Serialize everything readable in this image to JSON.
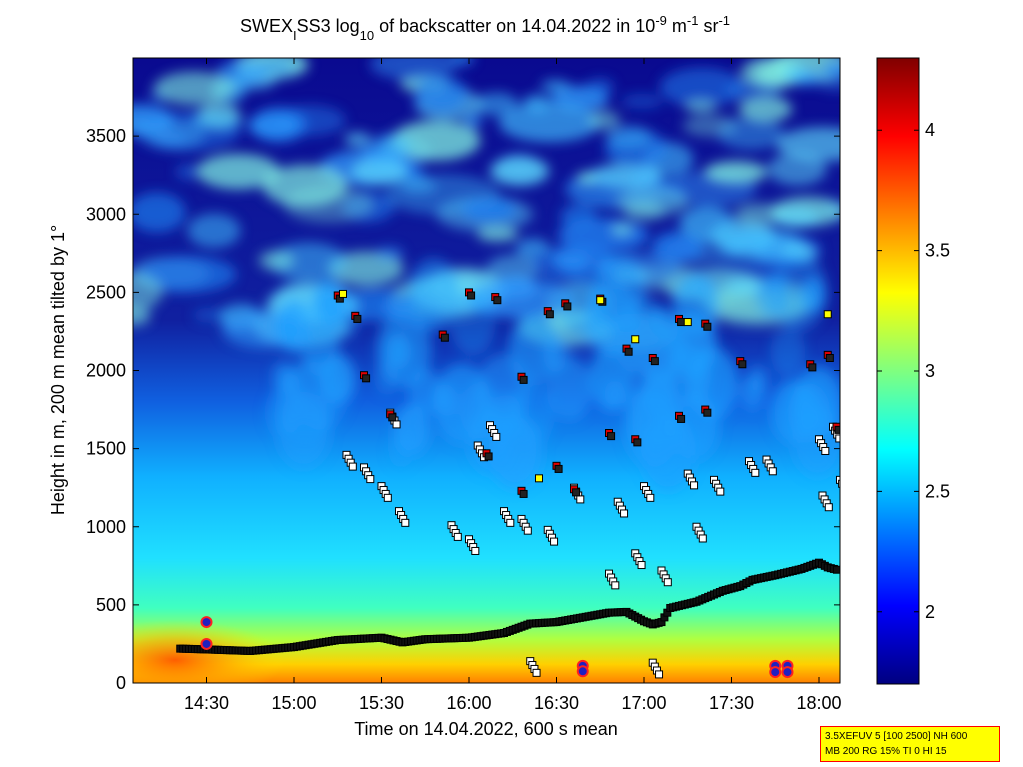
{
  "chart_data": {
    "type": "heatmap",
    "title_parts": {
      "prefix": "SWEX",
      "sub1": "I",
      "mid": "SS3 log",
      "sub2": "10",
      "mid2": " of backscatter on 14.04.2022 in 10",
      "sup1": "-9",
      "mid3": " m",
      "sup2": "-1",
      "mid4": " sr",
      "sup3": "-1"
    },
    "xlabel": "Time on 14.04.2022, 600 s mean",
    "ylabel": "Height in m, 200 m mean tilted by 1°",
    "x_range_hours": [
      14.08,
      18.12
    ],
    "xlim": [
      "14:05",
      "18:07"
    ],
    "ylim": [
      0,
      4000
    ],
    "x_ticks": [
      {
        "value": 14.5,
        "label": "14:30"
      },
      {
        "value": 15.0,
        "label": "15:00"
      },
      {
        "value": 15.5,
        "label": "15:30"
      },
      {
        "value": 16.0,
        "label": "16:00"
      },
      {
        "value": 16.5,
        "label": "16:30"
      },
      {
        "value": 17.0,
        "label": "17:00"
      },
      {
        "value": 17.5,
        "label": "17:30"
      },
      {
        "value": 18.0,
        "label": "18:00"
      }
    ],
    "y_ticks": [
      {
        "value": 0,
        "label": "0"
      },
      {
        "value": 500,
        "label": "500"
      },
      {
        "value": 1000,
        "label": "1000"
      },
      {
        "value": 1500,
        "label": "1500"
      },
      {
        "value": 2000,
        "label": "2000"
      },
      {
        "value": 2500,
        "label": "2500"
      },
      {
        "value": 3000,
        "label": "3000"
      },
      {
        "value": 3500,
        "label": "3500"
      }
    ],
    "colorbar": {
      "range": [
        1.7,
        4.3
      ],
      "ticks": [
        {
          "value": 2,
          "label": "2"
        },
        {
          "value": 2.5,
          "label": "2.5"
        },
        {
          "value": 3,
          "label": "3"
        },
        {
          "value": 3.5,
          "label": "3.5"
        },
        {
          "value": 4,
          "label": "4"
        }
      ],
      "colormap": "jet"
    },
    "mixing_layer_height": [
      [
        14.35,
        220
      ],
      [
        14.5,
        215
      ],
      [
        14.75,
        205
      ],
      [
        15.0,
        230
      ],
      [
        15.25,
        275
      ],
      [
        15.5,
        290
      ],
      [
        15.62,
        260
      ],
      [
        15.75,
        280
      ],
      [
        16.0,
        290
      ],
      [
        16.2,
        320
      ],
      [
        16.35,
        380
      ],
      [
        16.5,
        390
      ],
      [
        16.65,
        420
      ],
      [
        16.8,
        450
      ],
      [
        16.9,
        455
      ],
      [
        17.0,
        395
      ],
      [
        17.05,
        375
      ],
      [
        17.1,
        390
      ],
      [
        17.15,
        480
      ],
      [
        17.3,
        520
      ],
      [
        17.45,
        590
      ],
      [
        17.55,
        620
      ],
      [
        17.62,
        660
      ],
      [
        17.75,
        690
      ],
      [
        17.9,
        730
      ],
      [
        18.0,
        770
      ],
      [
        18.05,
        740
      ],
      [
        18.12,
        720
      ]
    ],
    "layer_markers_white": [
      [
        15.3,
        1460
      ],
      [
        15.4,
        1380
      ],
      [
        15.5,
        1260
      ],
      [
        15.6,
        1100
      ],
      [
        15.9,
        1010
      ],
      [
        16.0,
        920
      ],
      [
        15.55,
        1730
      ],
      [
        16.05,
        1520
      ],
      [
        16.12,
        1650
      ],
      [
        16.2,
        1100
      ],
      [
        16.3,
        1050
      ],
      [
        16.45,
        980
      ],
      [
        16.6,
        1250
      ],
      [
        16.85,
        1160
      ],
      [
        17.0,
        1260
      ],
      [
        17.25,
        1340
      ],
      [
        17.4,
        1300
      ],
      [
        17.6,
        1420
      ],
      [
        17.7,
        1430
      ],
      [
        18.0,
        1560
      ],
      [
        18.08,
        1640
      ],
      [
        18.12,
        1300
      ],
      [
        18.02,
        1200
      ],
      [
        17.3,
        1000
      ],
      [
        17.1,
        720
      ],
      [
        16.95,
        830
      ],
      [
        16.8,
        700
      ],
      [
        16.35,
        140
      ],
      [
        17.05,
        130
      ]
    ],
    "layer_markers_red": [
      [
        15.25,
        2480
      ],
      [
        15.35,
        2350
      ],
      [
        15.4,
        1970
      ],
      [
        15.55,
        1720
      ],
      [
        15.85,
        2230
      ],
      [
        16.0,
        2500
      ],
      [
        16.15,
        2470
      ],
      [
        16.3,
        1960
      ],
      [
        16.45,
        2380
      ],
      [
        16.55,
        2430
      ],
      [
        16.75,
        2460
      ],
      [
        16.9,
        2140
      ],
      [
        17.05,
        2080
      ],
      [
        17.2,
        2330
      ],
      [
        17.35,
        2300
      ],
      [
        17.55,
        2060
      ],
      [
        17.95,
        2040
      ],
      [
        18.05,
        2100
      ],
      [
        16.5,
        1390
      ],
      [
        16.6,
        1240
      ],
      [
        17.2,
        1710
      ],
      [
        17.35,
        1750
      ],
      [
        16.95,
        1560
      ],
      [
        16.8,
        1600
      ],
      [
        18.1,
        1640
      ],
      [
        16.1,
        1470
      ],
      [
        16.3,
        1230
      ]
    ],
    "layer_markers_yellow": [
      [
        15.28,
        2490
      ],
      [
        16.75,
        2450
      ],
      [
        17.25,
        2310
      ],
      [
        16.95,
        2200
      ],
      [
        16.4,
        1310
      ],
      [
        18.05,
        2360
      ]
    ],
    "precipitation_markers": [
      [
        14.5,
        390
      ],
      [
        14.5,
        250
      ],
      [
        16.65,
        110
      ],
      [
        16.65,
        75
      ],
      [
        17.75,
        110
      ],
      [
        17.75,
        70
      ],
      [
        17.82,
        110
      ],
      [
        17.82,
        70
      ]
    ]
  },
  "infobox": {
    "line1": "3.5XEFUV 5 [100 2500] NH 600",
    "line2": "MB 200 RG 15% TI 0 HI 15"
  }
}
